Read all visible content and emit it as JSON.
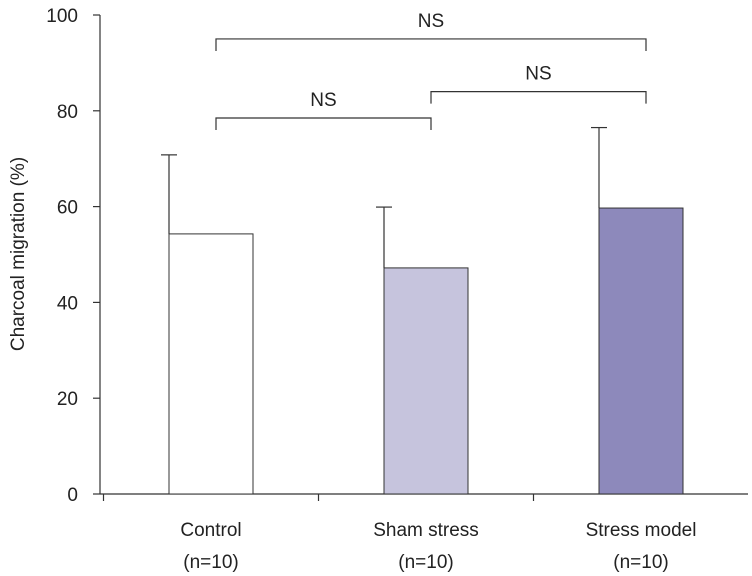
{
  "chart_data": {
    "type": "bar",
    "title": "",
    "xlabel": "",
    "ylabel": "Charcoal migration (%)",
    "ylim": [
      0,
      100
    ],
    "yticks": [
      0,
      20,
      40,
      60,
      80,
      100
    ],
    "categories": [
      {
        "name": "Control",
        "n": "(n=10)"
      },
      {
        "name": "Sham stress",
        "n": "(n=10)"
      },
      {
        "name": "Stress model",
        "n": "(n=10)"
      }
    ],
    "values": [
      54.3,
      47.2,
      59.7
    ],
    "errors": [
      16.5,
      12.7,
      16.8
    ],
    "colors": [
      "#ffffff",
      "#c6c4dd",
      "#8d89bb"
    ],
    "significance": [
      {
        "from": 0,
        "to": 2,
        "label": "NS",
        "level": 95
      },
      {
        "from": 1,
        "to": 2,
        "label": "NS",
        "level": 84
      },
      {
        "from": 0,
        "to": 1,
        "label": "NS",
        "level": 78.5
      }
    ]
  }
}
